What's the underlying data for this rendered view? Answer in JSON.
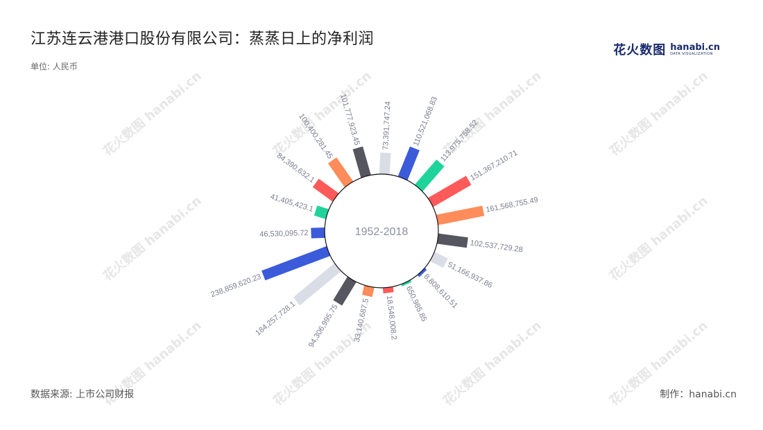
{
  "title": "江苏连云港港口股份有限公司：蒸蒸日上的净利润",
  "unit": "单位: 人民币",
  "source": "数据来源: 上市公司财报",
  "maker": "制作：hanabi.cn",
  "logo": {
    "cn": "花火数图",
    "en": "hanabi.cn",
    "en_sub": "DATA VISUALIZATION"
  },
  "watermark": "花火数图 hanabi.cn",
  "chart_data": {
    "type": "bar",
    "layout": "radial",
    "center_label": "1952-2018",
    "series": [
      {
        "values": [
          73391747.24,
          110521068.83,
          113975758.52,
          151367210.71,
          161568755.49,
          102537729.28,
          51166937.86,
          8808610.51,
          650985.85,
          18548008.2,
          33140687.5,
          94306995.75,
          184257728.1,
          238859620.23,
          46530095.72,
          41405423.1,
          84390632.1,
          100400281.45,
          101777923.45
        ],
        "labels": [
          "73,391,747.24",
          "110,521,068.83",
          "113,975,758.52",
          "151,367,210.71",
          "161,568,755.49",
          "102,537,729.28",
          "51,166,937.86",
          "8,808,610.51",
          "650,985.85",
          "18,548,008.2",
          "33,140,687.5",
          "94,306,995.75",
          "184,257,728.1",
          "238,859,620.23",
          "46,530,095.72",
          "41,405,423.1",
          "84,390,632.1",
          "100,400,281.45",
          "101,777,923.45"
        ],
        "colors": [
          "#d9dde6",
          "#3b5bdb",
          "#1fd49a",
          "#ff5a5a",
          "#ff8c5a",
          "#55565f",
          "#d9dde6",
          "#3b5bdb",
          "#1fd49a",
          "#ff5a5a",
          "#ff8c5a",
          "#55565f",
          "#d9dde6",
          "#3b5bdb",
          "#3b5bdb",
          "#1fd49a",
          "#ff5a5a",
          "#ff8c5a",
          "#55565f"
        ]
      }
    ]
  }
}
